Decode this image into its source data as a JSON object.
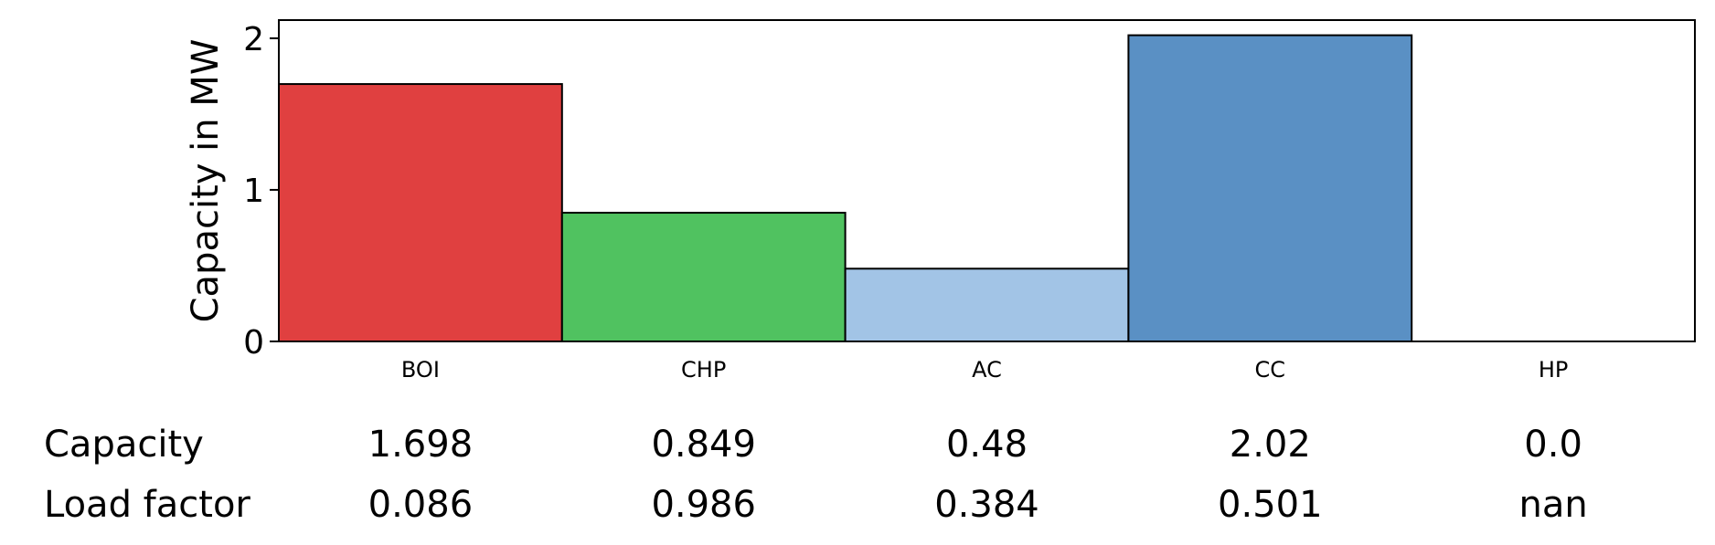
{
  "chart_data": {
    "type": "bar",
    "ylabel": "Capacity in MW",
    "xlabel": "",
    "title": "",
    "categories": [
      "BOI",
      "CHP",
      "AC",
      "CC",
      "HP"
    ],
    "values": [
      1.698,
      0.849,
      0.48,
      2.02,
      0.0
    ],
    "colors": [
      "#e04040",
      "#50c260",
      "#a2c4e6",
      "#5a90c4",
      "#ffffff"
    ],
    "ylim": [
      0,
      2.12
    ],
    "yticks": [
      0,
      1,
      2
    ],
    "grid": false,
    "legend": "none",
    "table": {
      "rows": [
        {
          "label": "Capacity",
          "values": [
            "1.698",
            "0.849",
            "0.48",
            "2.02",
            "0.0"
          ]
        },
        {
          "label": "Load factor",
          "values": [
            "0.086",
            "0.986",
            "0.384",
            "0.501",
            "nan"
          ]
        }
      ]
    }
  }
}
